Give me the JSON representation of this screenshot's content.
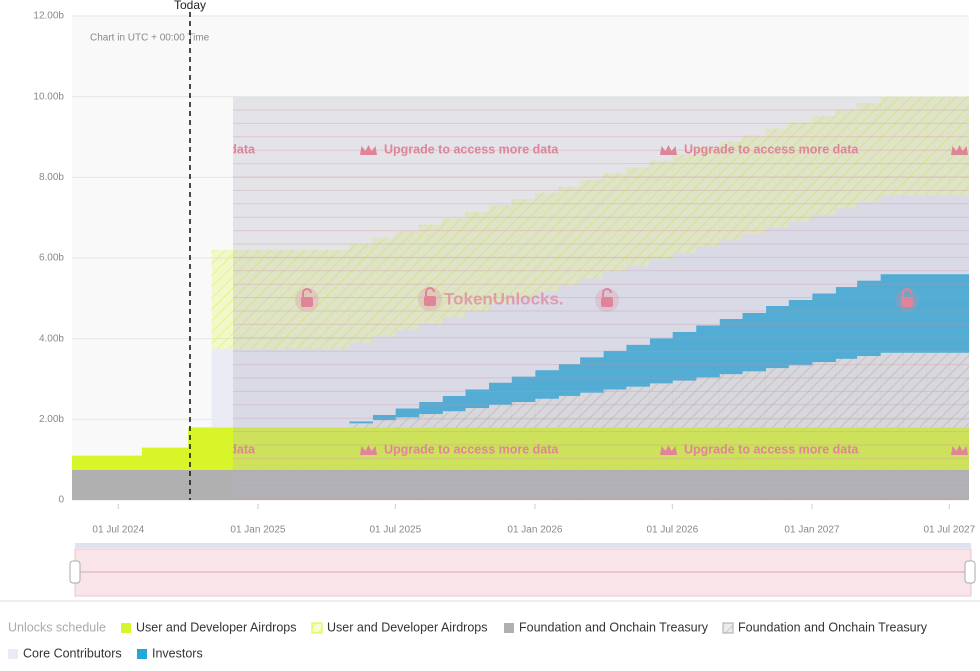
{
  "chart_data": {
    "type": "area",
    "stacked": true,
    "step": true,
    "timezone_note": "Chart in UTC + 00:00 Time",
    "today_label": "Today",
    "paywall_text": "Upgrade to access more data",
    "watermark": "TokenUnlocks.",
    "legend_title": "Unlocks schedule",
    "x": [
      "01 May 2024",
      "01 Jun 2024",
      "01 Jul 2024",
      "01 Aug 2024",
      "01 Sep 2024",
      "01 Oct 2024",
      "01 Nov 2024",
      "01 Dec 2024",
      "01 Jan 2025",
      "01 Feb 2025",
      "01 Mar 2025",
      "01 Apr 2025",
      "01 May 2025",
      "01 Jun 2025",
      "01 Jul 2025",
      "01 Aug 2025",
      "01 Sep 2025",
      "01 Oct 2025",
      "01 Nov 2025",
      "01 Dec 2025",
      "01 Jan 2026",
      "01 Feb 2026",
      "01 Mar 2026",
      "01 Apr 2026",
      "01 May 2026",
      "01 Jun 2026",
      "01 Jul 2026",
      "01 Aug 2026",
      "01 Sep 2026",
      "01 Oct 2026",
      "01 Nov 2026",
      "01 Dec 2026",
      "01 Jan 2027",
      "01 Feb 2027",
      "01 Mar 2027",
      "01 Apr 2027",
      "01 May 2027",
      "01 Jun 2027",
      "01 Jul 2027"
    ],
    "xticks": [
      "01 Jul 2024",
      "01 Jan 2025",
      "01 Jul 2025",
      "01 Jan 2026",
      "01 Jul 2026",
      "01 Jan 2027",
      "01 Jul 2027"
    ],
    "ylim": [
      0,
      12
    ],
    "yticks": [
      0,
      {
        "value": 2,
        "label": "2.00b"
      },
      {
        "value": 4,
        "label": "4.00b"
      },
      {
        "value": 6,
        "label": "6.00b"
      },
      {
        "value": 8,
        "label": "8.00b"
      },
      {
        "value": 10,
        "label": "10.00b"
      },
      {
        "value": 12,
        "label": "12.00b"
      }
    ],
    "grid": true,
    "series": [
      {
        "name": "Foundation and Onchain Treasury",
        "color": "#b0b0b0",
        "hatched": false,
        "values": [
          0.75,
          0.75,
          0.75,
          0.75,
          0.75,
          0.75,
          0.75,
          0.75,
          0.75,
          0.75,
          0.75,
          0.75,
          0.75,
          0.75,
          0.75,
          0.75,
          0.75,
          0.75,
          0.75,
          0.75,
          0.75,
          0.75,
          0.75,
          0.75,
          0.75,
          0.75,
          0.75,
          0.75,
          0.75,
          0.75,
          0.75,
          0.75,
          0.75,
          0.75,
          0.75,
          0.75,
          0.75,
          0.75,
          0.75
        ]
      },
      {
        "name": "User and Developer Airdrops",
        "color": "#d8f52a",
        "hatched": false,
        "values": [
          0.35,
          0.35,
          0.35,
          0.55,
          0.55,
          1.05,
          1.05,
          1.05,
          1.05,
          1.05,
          1.05,
          1.05,
          1.05,
          1.05,
          1.05,
          1.05,
          1.05,
          1.05,
          1.05,
          1.05,
          1.05,
          1.05,
          1.05,
          1.05,
          1.05,
          1.05,
          1.05,
          1.05,
          1.05,
          1.05,
          1.05,
          1.05,
          1.05,
          1.05,
          1.05,
          1.05,
          1.05,
          1.05,
          1.05
        ]
      },
      {
        "name": "Foundation and Onchain Treasury",
        "color": "#a8a8a8",
        "hatched": true,
        "values": [
          null,
          null,
          null,
          null,
          null,
          null,
          0,
          0,
          0,
          0,
          0,
          0,
          0.1,
          0.18,
          0.25,
          0.33,
          0.4,
          0.48,
          0.56,
          0.63,
          0.71,
          0.78,
          0.86,
          0.94,
          1.01,
          1.09,
          1.16,
          1.24,
          1.32,
          1.39,
          1.47,
          1.54,
          1.62,
          1.7,
          1.77,
          1.85,
          1.85,
          1.85,
          1.85
        ]
      },
      {
        "name": "Investors",
        "color": "#22a7da",
        "hatched": false,
        "values": [
          null,
          null,
          null,
          null,
          null,
          null,
          0,
          0,
          0,
          0,
          0,
          0,
          0.05,
          0.13,
          0.22,
          0.3,
          0.38,
          0.46,
          0.55,
          0.63,
          0.71,
          0.79,
          0.88,
          0.96,
          1.04,
          1.12,
          1.21,
          1.29,
          1.37,
          1.45,
          1.54,
          1.62,
          1.7,
          1.78,
          1.87,
          1.95,
          1.95,
          1.95,
          1.95
        ]
      },
      {
        "name": "Core Contributors",
        "color": "#ebebf6",
        "hatched": false,
        "values": [
          null,
          null,
          null,
          null,
          null,
          null,
          1.95,
          1.95,
          1.95,
          1.95,
          1.95,
          1.95,
          1.95,
          1.95,
          1.95,
          1.95,
          1.95,
          1.95,
          1.95,
          1.95,
          1.95,
          1.95,
          1.95,
          1.95,
          1.95,
          1.95,
          1.95,
          1.95,
          1.95,
          1.95,
          1.95,
          1.95,
          1.95,
          1.95,
          1.95,
          1.95,
          1.95,
          1.95,
          1.95
        ]
      },
      {
        "name": "User and Developer Airdrops",
        "color": "#d8f52a",
        "hatched": true,
        "values": [
          null,
          null,
          null,
          null,
          null,
          null,
          2.45,
          2.45,
          2.45,
          2.45,
          2.45,
          2.45,
          2.45,
          2.45,
          2.45,
          2.45,
          2.45,
          2.45,
          2.45,
          2.45,
          2.45,
          2.45,
          2.45,
          2.45,
          2.45,
          2.45,
          2.45,
          2.45,
          2.45,
          2.45,
          2.45,
          2.45,
          2.45,
          2.45,
          2.45,
          2.45,
          2.45,
          2.45,
          2.45
        ]
      }
    ]
  }
}
